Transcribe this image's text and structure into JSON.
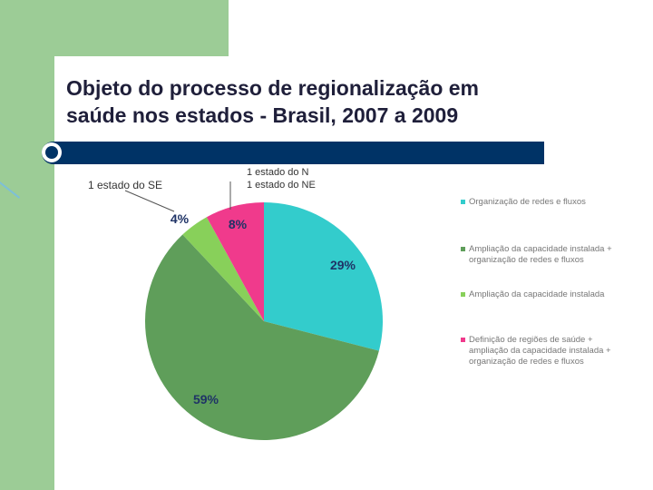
{
  "title_line1": "Objeto do processo de regionalização em",
  "title_line2": "saúde nos estados - Brasil, 2007 a 2009",
  "annotations": {
    "se": "1 estado do SE",
    "n": "1 estado do N",
    "ne": "1 estado do NE"
  },
  "chart_data": {
    "type": "pie",
    "title": "",
    "series": [
      {
        "name": "Organização de redes e fluxos",
        "value": 29,
        "label": "29%",
        "color": "#33cccc"
      },
      {
        "name": "Ampliação da capacidade instalada + organização de redes e fluxos",
        "value": 59,
        "label": "59%",
        "color": "#5f9e5a"
      },
      {
        "name": "Ampliação da capacidade instalada",
        "value": 4,
        "label": "4%",
        "color": "#88d05a"
      },
      {
        "name": "Definição de regiões de saúde + ampliação da capacidade instalada + organização de redes e fluxos",
        "value": 8,
        "label": "8%",
        "color": "#f03a8c"
      }
    ],
    "legend_position": "right"
  }
}
